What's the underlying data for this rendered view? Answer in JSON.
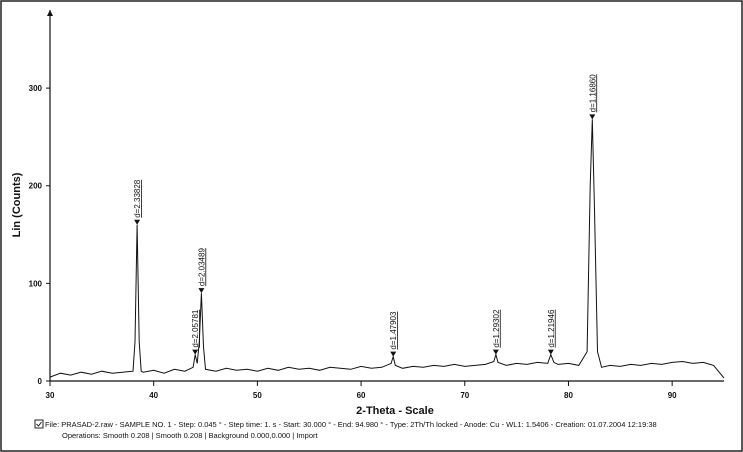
{
  "chart_data": {
    "type": "line",
    "xlabel": "2-Theta - Scale",
    "ylabel": "Lin (Counts)",
    "color": "#111111",
    "x": [
      30,
      31,
      32,
      33,
      34,
      35,
      36,
      37,
      38,
      38.2,
      38.4,
      38.6,
      38.8,
      39,
      40,
      41,
      42,
      43,
      43.8,
      44,
      44.2,
      44.4,
      44.6,
      44.8,
      45,
      46,
      47,
      48,
      49,
      50,
      51,
      52,
      53,
      54,
      55,
      56,
      57,
      58,
      59,
      60,
      61,
      62,
      62.9,
      63.1,
      63.3,
      64,
      65,
      66,
      67,
      68,
      69,
      70,
      71,
      72,
      72.8,
      73,
      73.2,
      74,
      75,
      76,
      77,
      78,
      78.3,
      78.6,
      79,
      80,
      81,
      81.8,
      82.1,
      82.3,
      82.5,
      82.8,
      83.2,
      84,
      85,
      86,
      87,
      88,
      89,
      90,
      91,
      92,
      93,
      94,
      95
    ],
    "values": [
      4,
      8,
      6,
      9,
      7,
      10,
      8,
      9,
      10,
      40,
      160,
      40,
      10,
      9,
      11,
      8,
      12,
      10,
      14,
      27,
      18,
      40,
      90,
      35,
      12,
      10,
      13,
      11,
      12,
      10,
      13,
      11,
      14,
      12,
      13,
      11,
      14,
      13,
      12,
      15,
      13,
      14,
      18,
      25,
      16,
      13,
      15,
      14,
      16,
      15,
      17,
      15,
      16,
      17,
      20,
      27,
      19,
      16,
      18,
      17,
      19,
      18,
      27,
      19,
      17,
      18,
      16,
      30,
      200,
      268,
      180,
      30,
      14,
      16,
      15,
      17,
      16,
      18,
      17,
      19,
      20,
      18,
      19,
      16,
      3
    ],
    "xlim": [
      30,
      95
    ],
    "xticks": [
      30,
      40,
      50,
      60,
      70,
      80,
      90
    ],
    "ylim": [
      0,
      380
    ],
    "yticks": [
      0,
      100,
      200,
      300
    ],
    "annotations": [
      {
        "text": "d=2.33828",
        "x": 38.4,
        "y": 160
      },
      {
        "text": "d=2.05781",
        "x": 44.0,
        "y": 27
      },
      {
        "text": "d=2.03489",
        "x": 44.6,
        "y": 90
      },
      {
        "text": "d=1.47903",
        "x": 63.1,
        "y": 25
      },
      {
        "text": "d=1.29302",
        "x": 73.0,
        "y": 27
      },
      {
        "text": "d=1.21946",
        "x": 78.3,
        "y": 27
      },
      {
        "text": "d=1.16860",
        "x": 82.3,
        "y": 268
      }
    ],
    "footer": [
      "File: PRASAD-2.raw - SAMPLE NO. 1 - Step: 0.045 ° - Step time: 1. s - Start: 30.000 ° - End: 94.980 ° - Type: 2Th/Th locked - Anode: Cu - WL1: 1.5406 - Creation: 01.07.2004 12:19:38",
      "Operations: Smooth 0.208 | Smooth 0.208 | Background 0.000,0.000 | Import"
    ]
  }
}
